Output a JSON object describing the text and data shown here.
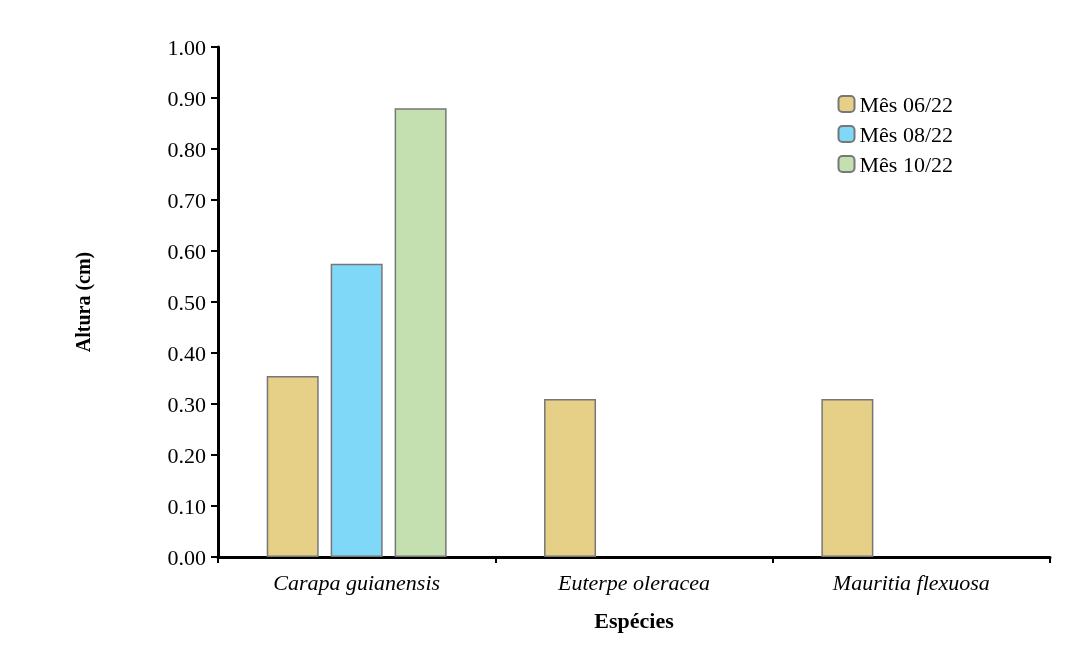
{
  "chart_data": {
    "type": "bar",
    "xlabel": "Espécies",
    "ylabel": "Altura (cm)",
    "categories": [
      "Carapa guianensis",
      "Euterpe oleracea",
      "Mauritia flexuosa"
    ],
    "series": [
      {
        "name": "Mês 06/22",
        "color": "#e6cf86",
        "values": [
          0.355,
          0.31,
          0.31
        ]
      },
      {
        "name": "Mês 08/22",
        "color": "#7fd8f8",
        "values": [
          0.575,
          null,
          null
        ]
      },
      {
        "name": "Mês 10/22",
        "color": "#c4e0b0",
        "values": [
          0.88,
          null,
          null
        ]
      }
    ],
    "ylim": [
      0,
      1
    ],
    "yticks": [
      {
        "value": 0,
        "label": "0.00"
      },
      {
        "value": 0.1,
        "label": "0.10"
      },
      {
        "value": 0.2,
        "label": "0.20"
      },
      {
        "value": 0.3,
        "label": "0.30"
      },
      {
        "value": 0.4,
        "label": "0.40"
      },
      {
        "value": 0.5,
        "label": "0.50"
      },
      {
        "value": 0.6,
        "label": "0.60"
      },
      {
        "value": 0.7,
        "label": "0.70"
      },
      {
        "value": 0.8,
        "label": "0.80"
      },
      {
        "value": 0.9,
        "label": "0.90"
      },
      {
        "value": 1,
        "label": "1.00"
      }
    ],
    "grid": false,
    "legend": "top right"
  }
}
